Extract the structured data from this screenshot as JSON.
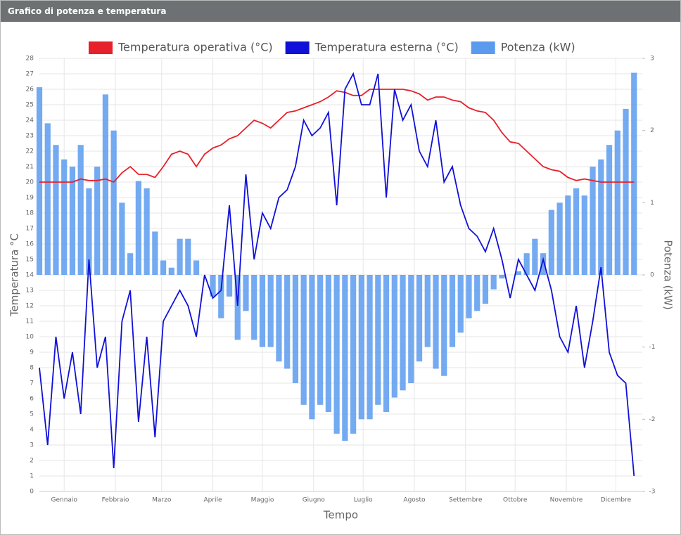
{
  "header": {
    "title": "Grafico di potenza e temperatura"
  },
  "chart_data": {
    "type": "combo",
    "x": [
      0,
      5,
      10,
      15,
      20,
      25,
      30,
      35,
      40,
      45,
      50,
      55,
      60,
      65,
      70,
      75,
      80,
      85,
      90,
      95,
      100,
      105,
      110,
      115,
      120,
      125,
      130,
      135,
      140,
      145,
      150,
      155,
      160,
      165,
      170,
      175,
      180,
      185,
      190,
      195,
      200,
      205,
      210,
      215,
      220,
      225,
      230,
      235,
      240,
      245,
      250,
      255,
      260,
      265,
      270,
      275,
      280,
      285,
      290,
      295,
      300,
      305,
      310,
      315,
      320,
      325,
      330,
      335,
      340,
      345,
      350,
      355,
      360
    ],
    "xlabel": "Tempo",
    "ylabel": "Temperatura °C",
    "y2label": "Potenza (kW)",
    "xlim": [
      0,
      365
    ],
    "xticks": [
      {
        "value": 15,
        "label": "Gennaio"
      },
      {
        "value": 46,
        "label": "Febbraio"
      },
      {
        "value": 74,
        "label": "Marzo"
      },
      {
        "value": 105,
        "label": "Aprile"
      },
      {
        "value": 135,
        "label": "Maggio"
      },
      {
        "value": 166,
        "label": "Giugno"
      },
      {
        "value": 196,
        "label": "Luglio"
      },
      {
        "value": 227,
        "label": "Agosto"
      },
      {
        "value": 258,
        "label": "Settembre"
      },
      {
        "value": 288,
        "label": "Ottobre"
      },
      {
        "value": 319,
        "label": "Novembre"
      },
      {
        "value": 349,
        "label": "Dicembre"
      }
    ],
    "ylim": [
      0,
      28
    ],
    "yticks": [
      0,
      1,
      2,
      3,
      4,
      5,
      6,
      7,
      8,
      9,
      10,
      11,
      12,
      13,
      14,
      15,
      16,
      17,
      18,
      19,
      20,
      21,
      22,
      23,
      24,
      25,
      26,
      27,
      28
    ],
    "y2lim": [
      -3,
      3
    ],
    "y2ticks": [
      -3,
      -2,
      -1,
      0,
      1,
      2,
      3
    ],
    "grid": true,
    "series": [
      {
        "name": "Temperatura operativa (°C)",
        "type": "line",
        "color": "#e8202a",
        "values": [
          20,
          20,
          20,
          20,
          20,
          20.2,
          20.1,
          20.1,
          20.2,
          20,
          20.6,
          21,
          20.5,
          20.5,
          20.3,
          21,
          21.8,
          22,
          21.8,
          21,
          21.8,
          22.2,
          22.4,
          22.8,
          23,
          23.5,
          24,
          23.8,
          23.5,
          24,
          24.5,
          24.6,
          24.8,
          25,
          25.2,
          25.5,
          25.9,
          25.8,
          25.6,
          25.6,
          26,
          26,
          26,
          26,
          26,
          25.9,
          25.7,
          25.3,
          25.5,
          25.5,
          25.3,
          25.2,
          24.8,
          24.6,
          24.5,
          24,
          23.2,
          22.6,
          22.5,
          22,
          21.5,
          21,
          20.8,
          20.7,
          20.3,
          20.1,
          20.2,
          20.1,
          20,
          20,
          20,
          20,
          20
        ]
      },
      {
        "name": "Temperatura esterna (°C)",
        "type": "line",
        "color": "#1010d8",
        "values": [
          8,
          3,
          10,
          6,
          9,
          5,
          15,
          8,
          10,
          1.5,
          11,
          13,
          4.5,
          10,
          3.5,
          11,
          12,
          13,
          12,
          10,
          14,
          12.5,
          13,
          18.5,
          12,
          20.5,
          15,
          18,
          17,
          19,
          19.5,
          21,
          24,
          23,
          23.5,
          24.5,
          18.5,
          26,
          27,
          25,
          25,
          27,
          19,
          26,
          24,
          25,
          22,
          21,
          24,
          20,
          21,
          18.5,
          17,
          16.5,
          15.5,
          17,
          15,
          12.5,
          15,
          14,
          13,
          15,
          13,
          10,
          9,
          12,
          8,
          11,
          14.5,
          9,
          7.5,
          7,
          1
        ]
      },
      {
        "name": "Potenza (kW)",
        "type": "bar",
        "axis": "y2",
        "color": "#5b9bef",
        "values": [
          2.6,
          2.1,
          1.8,
          1.6,
          1.5,
          1.8,
          1.2,
          1.5,
          2.5,
          2,
          1,
          0.3,
          1.3,
          1.2,
          0.6,
          0.2,
          0.1,
          0.5,
          0.5,
          0.2,
          0,
          -0.3,
          -0.6,
          -0.3,
          -0.9,
          -0.5,
          -0.9,
          -1,
          -1,
          -1.2,
          -1.3,
          -1.5,
          -1.8,
          -2,
          -1.8,
          -1.9,
          -2.2,
          -2.3,
          -2.2,
          -2,
          -2,
          -1.8,
          -1.9,
          -1.7,
          -1.6,
          -1.5,
          -1.2,
          -1,
          -1.3,
          -1.4,
          -1,
          -0.8,
          -0.6,
          -0.5,
          -0.4,
          -0.2,
          -0.05,
          0,
          0.05,
          0.3,
          0.5,
          0.3,
          0.9,
          1,
          1.1,
          1.2,
          1.1,
          1.5,
          1.6,
          1.8,
          2,
          2.3,
          2.8
        ]
      }
    ]
  }
}
